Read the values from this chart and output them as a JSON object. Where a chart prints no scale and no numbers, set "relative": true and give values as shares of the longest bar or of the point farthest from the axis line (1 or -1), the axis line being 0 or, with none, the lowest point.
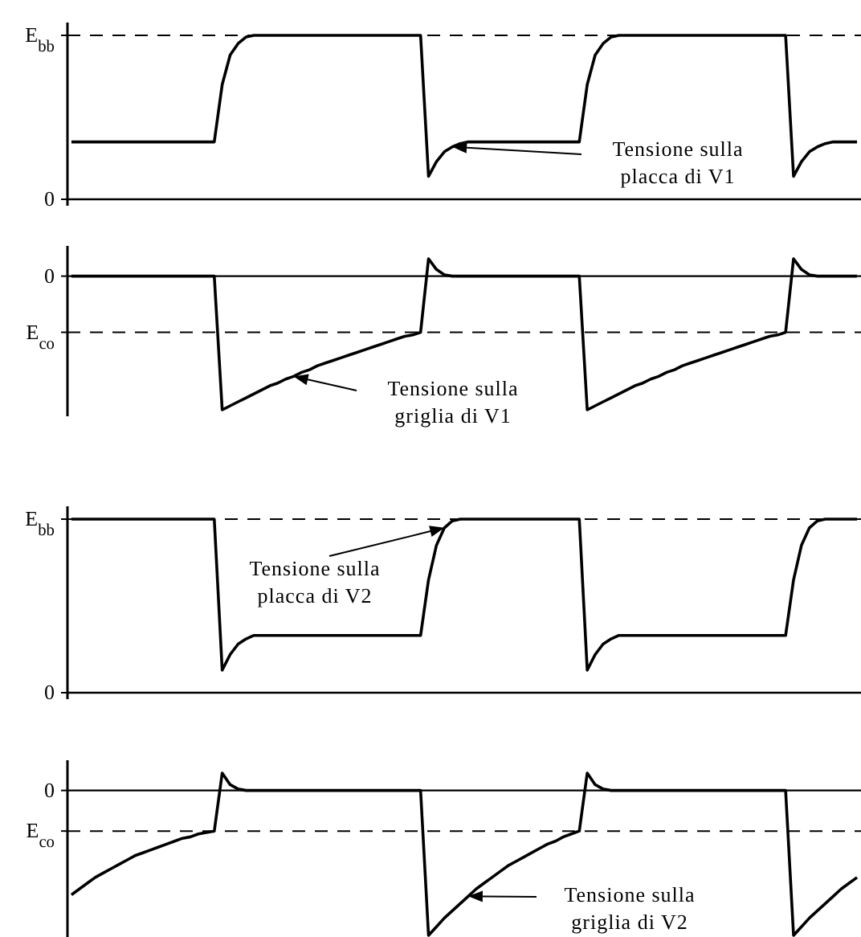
{
  "chart_data": [
    {
      "type": "line",
      "relative": true,
      "categories": [
        null,
        null,
        null,
        null,
        null,
        null,
        null,
        null,
        null,
        null,
        null,
        null,
        null,
        null,
        null,
        null,
        null,
        null,
        null,
        null,
        null,
        null,
        null,
        null,
        null,
        null,
        null,
        null,
        null,
        null,
        null,
        null,
        null,
        null,
        null,
        null,
        null,
        null,
        null,
        null,
        null,
        null,
        null,
        null,
        null,
        null,
        null,
        null,
        null,
        null,
        null,
        null,
        null,
        null,
        null,
        null,
        null,
        null,
        null,
        null,
        null,
        null,
        null,
        null,
        null,
        null,
        null,
        null,
        null,
        null,
        null,
        null,
        null,
        null,
        null,
        null,
        null,
        null,
        null,
        null,
        null,
        null,
        null,
        null,
        null,
        null,
        null,
        null,
        null,
        null,
        null,
        null,
        null,
        null,
        null,
        null,
        null,
        null,
        null,
        null
      ],
      "series": [
        {
          "color": "#000000",
          "values": [
            0.35,
            0.35,
            0.35,
            0.35,
            0.35,
            0.35,
            0.35,
            0.35,
            0.35,
            0.35,
            0.35,
            0.35,
            0.35,
            0.35,
            0.35,
            0.35,
            0.35,
            0.35,
            0.35,
            0.7,
            0.88,
            0.95,
            0.99,
            1,
            1,
            1,
            1,
            1,
            1,
            1,
            1,
            1,
            1,
            1,
            1,
            1,
            1,
            1,
            1,
            1,
            1,
            1,
            1,
            1,
            1,
            0.14,
            0.23,
            0.29,
            0.32,
            0.34,
            0.35,
            0.35,
            0.35,
            0.35,
            0.35,
            0.35,
            0.35,
            0.35,
            0.35,
            0.35,
            0.35,
            0.35,
            0.35,
            0.35,
            0.35,
            0.7,
            0.88,
            0.95,
            0.99,
            1,
            1,
            1,
            1,
            1,
            1,
            1,
            1,
            1,
            1,
            1,
            1,
            1,
            1,
            1,
            1,
            1,
            1,
            1,
            1,
            1,
            1,
            0.14,
            0.23,
            0.29,
            0.32,
            0.34,
            0.35,
            0.35,
            0.35,
            0.35
          ]
        }
      ],
      "ref_lines": [
        {
          "axis": "y",
          "value": 1,
          "label": "E$_{bb}$",
          "line_style": "dashed"
        },
        {
          "axis": "y",
          "value": 0,
          "label": "0"
        }
      ],
      "annotations": [
        "Tensione sulla placca di V1"
      ]
    },
    {
      "type": "line",
      "relative": true,
      "categories": [
        null,
        null,
        null,
        null,
        null,
        null,
        null,
        null,
        null,
        null,
        null,
        null,
        null,
        null,
        null,
        null,
        null,
        null,
        null,
        null,
        null,
        null,
        null,
        null,
        null,
        null,
        null,
        null,
        null,
        null,
        null,
        null,
        null,
        null,
        null,
        null,
        null,
        null,
        null,
        null,
        null,
        null,
        null,
        null,
        null,
        null,
        null,
        null,
        null,
        null,
        null,
        null,
        null,
        null,
        null,
        null,
        null,
        null,
        null,
        null,
        null,
        null,
        null,
        null,
        null,
        null,
        null,
        null,
        null,
        null,
        null,
        null,
        null,
        null,
        null,
        null,
        null,
        null,
        null,
        null,
        null,
        null,
        null,
        null,
        null,
        null,
        null,
        null,
        null,
        null,
        null,
        null,
        null,
        null,
        null,
        null,
        null,
        null,
        null,
        null
      ],
      "series": [
        {
          "color": "#000000",
          "values": [
            0,
            0,
            0,
            0,
            0,
            0,
            0,
            0,
            0,
            0,
            0,
            0,
            0,
            0,
            0,
            0,
            0,
            0,
            0,
            -1,
            -0.97,
            -0.94,
            -0.91,
            -0.88,
            -0.85,
            -0.82,
            -0.8,
            -0.77,
            -0.75,
            -0.72,
            -0.7,
            -0.67,
            -0.65,
            -0.63,
            -0.61,
            -0.59,
            -0.57,
            -0.55,
            -0.53,
            -0.51,
            -0.49,
            -0.47,
            -0.45,
            -0.44,
            -0.42,
            0.13,
            0.05,
            0.01,
            0,
            0,
            0,
            0,
            0,
            0,
            0,
            0,
            0,
            0,
            0,
            0,
            0,
            0,
            0,
            0,
            0,
            -1,
            -0.97,
            -0.94,
            -0.91,
            -0.88,
            -0.85,
            -0.82,
            -0.8,
            -0.77,
            -0.75,
            -0.72,
            -0.7,
            -0.67,
            -0.65,
            -0.63,
            -0.61,
            -0.59,
            -0.57,
            -0.55,
            -0.53,
            -0.51,
            -0.49,
            -0.47,
            -0.45,
            -0.44,
            -0.42,
            0.13,
            0.05,
            0.01,
            0,
            0,
            0,
            0,
            0,
            0
          ]
        }
      ],
      "ref_lines": [
        {
          "axis": "y",
          "value": 0,
          "label": "0"
        },
        {
          "axis": "y",
          "value": -0.42,
          "label": "E$_{co}$",
          "line_style": "dashed"
        }
      ],
      "annotations": [
        "Tensione sulla griglia di V1"
      ]
    },
    {
      "type": "line",
      "relative": true,
      "categories": [
        null,
        null,
        null,
        null,
        null,
        null,
        null,
        null,
        null,
        null,
        null,
        null,
        null,
        null,
        null,
        null,
        null,
        null,
        null,
        null,
        null,
        null,
        null,
        null,
        null,
        null,
        null,
        null,
        null,
        null,
        null,
        null,
        null,
        null,
        null,
        null,
        null,
        null,
        null,
        null,
        null,
        null,
        null,
        null,
        null,
        null,
        null,
        null,
        null,
        null,
        null,
        null,
        null,
        null,
        null,
        null,
        null,
        null,
        null,
        null,
        null,
        null,
        null,
        null,
        null,
        null,
        null,
        null,
        null,
        null,
        null,
        null,
        null,
        null,
        null,
        null,
        null,
        null,
        null,
        null,
        null,
        null,
        null,
        null,
        null,
        null,
        null,
        null,
        null,
        null,
        null,
        null,
        null,
        null,
        null,
        null,
        null,
        null,
        null,
        null
      ],
      "series": [
        {
          "color": "#000000",
          "values": [
            1,
            1,
            1,
            1,
            1,
            1,
            1,
            1,
            1,
            1,
            1,
            1,
            1,
            1,
            1,
            1,
            1,
            1,
            1,
            0.13,
            0.22,
            0.28,
            0.31,
            0.33,
            0.33,
            0.33,
            0.33,
            0.33,
            0.33,
            0.33,
            0.33,
            0.33,
            0.33,
            0.33,
            0.33,
            0.33,
            0.33,
            0.33,
            0.33,
            0.33,
            0.33,
            0.33,
            0.33,
            0.33,
            0.33,
            0.65,
            0.85,
            0.95,
            0.99,
            1,
            1,
            1,
            1,
            1,
            1,
            1,
            1,
            1,
            1,
            1,
            1,
            1,
            1,
            1,
            1,
            0.13,
            0.22,
            0.28,
            0.31,
            0.33,
            0.33,
            0.33,
            0.33,
            0.33,
            0.33,
            0.33,
            0.33,
            0.33,
            0.33,
            0.33,
            0.33,
            0.33,
            0.33,
            0.33,
            0.33,
            0.33,
            0.33,
            0.33,
            0.33,
            0.33,
            0.33,
            0.65,
            0.85,
            0.95,
            0.99,
            1,
            1,
            1,
            1,
            1
          ]
        }
      ],
      "ref_lines": [
        {
          "axis": "y",
          "value": 1,
          "label": "E$_{bb}$",
          "line_style": "dashed"
        },
        {
          "axis": "y",
          "value": 0,
          "label": "0"
        }
      ],
      "annotations": [
        "Tensione sulla placca di V2"
      ]
    },
    {
      "type": "line",
      "relative": true,
      "categories": [
        null,
        null,
        null,
        null,
        null,
        null,
        null,
        null,
        null,
        null,
        null,
        null,
        null,
        null,
        null,
        null,
        null,
        null,
        null,
        null,
        null,
        null,
        null,
        null,
        null,
        null,
        null,
        null,
        null,
        null,
        null,
        null,
        null,
        null,
        null,
        null,
        null,
        null,
        null,
        null,
        null,
        null,
        null,
        null,
        null,
        null,
        null,
        null,
        null,
        null,
        null,
        null,
        null,
        null,
        null,
        null,
        null,
        null,
        null,
        null,
        null,
        null,
        null,
        null,
        null,
        null,
        null,
        null,
        null,
        null,
        null,
        null,
        null,
        null,
        null,
        null,
        null,
        null,
        null,
        null,
        null,
        null,
        null,
        null,
        null,
        null,
        null,
        null,
        null,
        null,
        null,
        null,
        null,
        null,
        null,
        null,
        null,
        null,
        null,
        null
      ],
      "series": [
        {
          "color": "#000000",
          "values": [
            -0.72,
            -0.68,
            -0.64,
            -0.6,
            -0.57,
            -0.54,
            -0.51,
            -0.48,
            -0.45,
            -0.43,
            -0.41,
            -0.39,
            -0.37,
            -0.35,
            -0.33,
            -0.32,
            -0.3,
            -0.29,
            -0.28,
            0.12,
            0.04,
            0.01,
            0,
            0,
            0,
            0,
            0,
            0,
            0,
            0,
            0,
            0,
            0,
            0,
            0,
            0,
            0,
            0,
            0,
            0,
            0,
            0,
            0,
            0,
            0,
            -1,
            -0.94,
            -0.88,
            -0.83,
            -0.78,
            -0.73,
            -0.68,
            -0.64,
            -0.6,
            -0.56,
            -0.52,
            -0.49,
            -0.46,
            -0.43,
            -0.4,
            -0.37,
            -0.35,
            -0.32,
            -0.3,
            -0.28,
            0.12,
            0.04,
            0.01,
            0,
            0,
            0,
            0,
            0,
            0,
            0,
            0,
            0,
            0,
            0,
            0,
            0,
            0,
            0,
            0,
            0,
            0,
            0,
            0,
            0,
            0,
            0,
            -1,
            -0.94,
            -0.88,
            -0.83,
            -0.78,
            -0.73,
            -0.68,
            -0.64,
            -0.6
          ]
        }
      ],
      "ref_lines": [
        {
          "axis": "y",
          "value": 0,
          "label": "0"
        },
        {
          "axis": "y",
          "value": -0.28,
          "label": "E$_{co}$",
          "line_style": "dashed"
        }
      ],
      "annotations": [
        "Tensione sulla griglia di V2"
      ]
    }
  ]
}
